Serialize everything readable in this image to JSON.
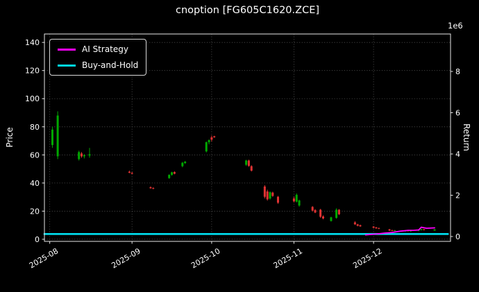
{
  "header": {
    "title": "cnoption [FG605C1620.ZCE]"
  },
  "chart_data": {
    "type": "candlestick+line",
    "title": "cnoption [FG605C1620.ZCE]",
    "legend_position": "upper left",
    "grid": true,
    "colors": {
      "background": "#000000",
      "text": "#ffffff",
      "frame": "#e8e8e8",
      "grid": "#5a5a5a",
      "up": "#00a800",
      "down": "#e03333"
    },
    "left_axis": {
      "label": "Price",
      "ticks": [
        0,
        20,
        40,
        60,
        80,
        100,
        120,
        140
      ],
      "range": [
        -1.5,
        146
      ]
    },
    "right_axis": {
      "label": "Return",
      "multiplier": "1e6",
      "ticks": [
        0,
        2,
        4,
        6,
        8
      ],
      "range_scaled": [
        -0.235,
        9.815
      ]
    },
    "x_axis": {
      "range": [
        "2025-07-30",
        "2025-12-30"
      ],
      "ticks": [
        {
          "date": "2025-08-01",
          "label": "2025-08"
        },
        {
          "date": "2025-09-01",
          "label": "2025-09"
        },
        {
          "date": "2025-10-01",
          "label": "2025-10"
        },
        {
          "date": "2025-11-01",
          "label": "2025-11"
        },
        {
          "date": "2025-12-01",
          "label": "2025-12"
        }
      ]
    },
    "series": [
      {
        "name": "AI Strategy",
        "color": "#ff00ff",
        "axis": "right",
        "line_width": 1.8,
        "points": [
          [
            "2025-11-28",
            0.08
          ],
          [
            "2025-12-02",
            0.12
          ],
          [
            "2025-12-05",
            0.16
          ],
          [
            "2025-12-08",
            0.2
          ],
          [
            "2025-12-11",
            0.26
          ],
          [
            "2025-12-14",
            0.3
          ],
          [
            "2025-12-16",
            0.3
          ],
          [
            "2025-12-18",
            0.32
          ],
          [
            "2025-12-19",
            0.45
          ],
          [
            "2025-12-21",
            0.4
          ],
          [
            "2025-12-24",
            0.42
          ]
        ]
      },
      {
        "name": "Buy-and-Hold",
        "color": "#00d8e8",
        "axis": "right",
        "line_width": 2.8,
        "points": [
          [
            "2025-07-30",
            0.12
          ],
          [
            "2025-12-29",
            0.12
          ]
        ]
      }
    ],
    "candles": [
      [
        "2025-08-02",
        67,
        80,
        65,
        78
      ],
      [
        "2025-08-04",
        59,
        91,
        57,
        88
      ],
      [
        "2025-08-12",
        57,
        63,
        56,
        62
      ],
      [
        "2025-08-13",
        61,
        62,
        58,
        59
      ],
      [
        "2025-08-14",
        59,
        60.5,
        57.5,
        59.8
      ],
      [
        "2025-08-16",
        59.5,
        65,
        58,
        60.5
      ],
      [
        "2025-08-31",
        48,
        48.8,
        47,
        47.3
      ],
      [
        "2025-09-01",
        47.2,
        47.8,
        46.2,
        46.6
      ],
      [
        "2025-09-08",
        37,
        37.6,
        36,
        36.3
      ],
      [
        "2025-09-09",
        36.4,
        36.9,
        35.6,
        35.9
      ],
      [
        "2025-09-15",
        43.5,
        46.2,
        43,
        45.8
      ],
      [
        "2025-09-16",
        45.8,
        48,
        45.2,
        47.6
      ],
      [
        "2025-09-17",
        47.8,
        48.3,
        46.2,
        46.6
      ],
      [
        "2025-09-20",
        52,
        55,
        51.2,
        54.4
      ],
      [
        "2025-09-21",
        54.2,
        55.6,
        53.6,
        55.2
      ],
      [
        "2025-09-29",
        62.5,
        69.5,
        61.8,
        69
      ],
      [
        "2025-09-30",
        69,
        71,
        67.5,
        70.5
      ],
      [
        "2025-10-01",
        72.5,
        73.8,
        69.5,
        70.8
      ],
      [
        "2025-10-02",
        73.2,
        73.6,
        72.2,
        72.5
      ],
      [
        "2025-10-14",
        53,
        56.5,
        52.2,
        56
      ],
      [
        "2025-10-15",
        56,
        56.6,
        51.5,
        52.2
      ],
      [
        "2025-10-16",
        52,
        52.6,
        48.2,
        48.8
      ],
      [
        "2025-10-21",
        37.5,
        38.5,
        29,
        30.2
      ],
      [
        "2025-10-22",
        34,
        35.2,
        27.5,
        28.4
      ],
      [
        "2025-10-23",
        29,
        34,
        28.2,
        33.4
      ],
      [
        "2025-10-24",
        33.2,
        33.8,
        30.2,
        30.8
      ],
      [
        "2025-10-26",
        30.2,
        30.8,
        25.2,
        26
      ],
      [
        "2025-11-01",
        29,
        30.2,
        26.2,
        27
      ],
      [
        "2025-11-02",
        26.8,
        32.6,
        26.2,
        31.6
      ],
      [
        "2025-11-03",
        24,
        28.2,
        23.2,
        27.6
      ],
      [
        "2025-11-08",
        23,
        23.6,
        19.8,
        20.4
      ],
      [
        "2025-11-09",
        20.8,
        21.4,
        18.6,
        19
      ],
      [
        "2025-11-11",
        21,
        21.6,
        15.2,
        16
      ],
      [
        "2025-11-12",
        16.2,
        17,
        14.2,
        14.8
      ],
      [
        "2025-11-15",
        13,
        16,
        12.6,
        15.6
      ],
      [
        "2025-11-17",
        15.2,
        22,
        14.6,
        21
      ],
      [
        "2025-11-18",
        21,
        21.4,
        17.2,
        17.8
      ],
      [
        "2025-11-24",
        12,
        12.8,
        10.2,
        10.6
      ],
      [
        "2025-11-25",
        10.6,
        11,
        9.2,
        9.6
      ],
      [
        "2025-11-26",
        10,
        10.4,
        8.8,
        9.2
      ],
      [
        "2025-12-01",
        9,
        9.4,
        7.8,
        8.2
      ],
      [
        "2025-12-02",
        8.4,
        8.8,
        7.4,
        7.8
      ],
      [
        "2025-12-03",
        8,
        8.2,
        7.2,
        7.5
      ],
      [
        "2025-12-07",
        7,
        7.4,
        5.9,
        6.2
      ],
      [
        "2025-12-08",
        6.4,
        6.8,
        5.8,
        6
      ],
      [
        "2025-12-09",
        6,
        6.6,
        5.7,
        6.4
      ],
      [
        "2025-12-13",
        5.6,
        6.6,
        5.4,
        6.4
      ],
      [
        "2025-12-14",
        6.4,
        6.7,
        5.5,
        5.8
      ],
      [
        "2025-12-15",
        5.7,
        6.3,
        5.4,
        6.1
      ],
      [
        "2025-12-18",
        6,
        7.1,
        5.8,
        6.9
      ],
      [
        "2025-12-19",
        6.6,
        7.5,
        6.2,
        7.2
      ],
      [
        "2025-12-20",
        7.1,
        7.4,
        6.3,
        6.6
      ],
      [
        "2025-12-24",
        6.2,
        7.2,
        6,
        7
      ]
    ]
  }
}
